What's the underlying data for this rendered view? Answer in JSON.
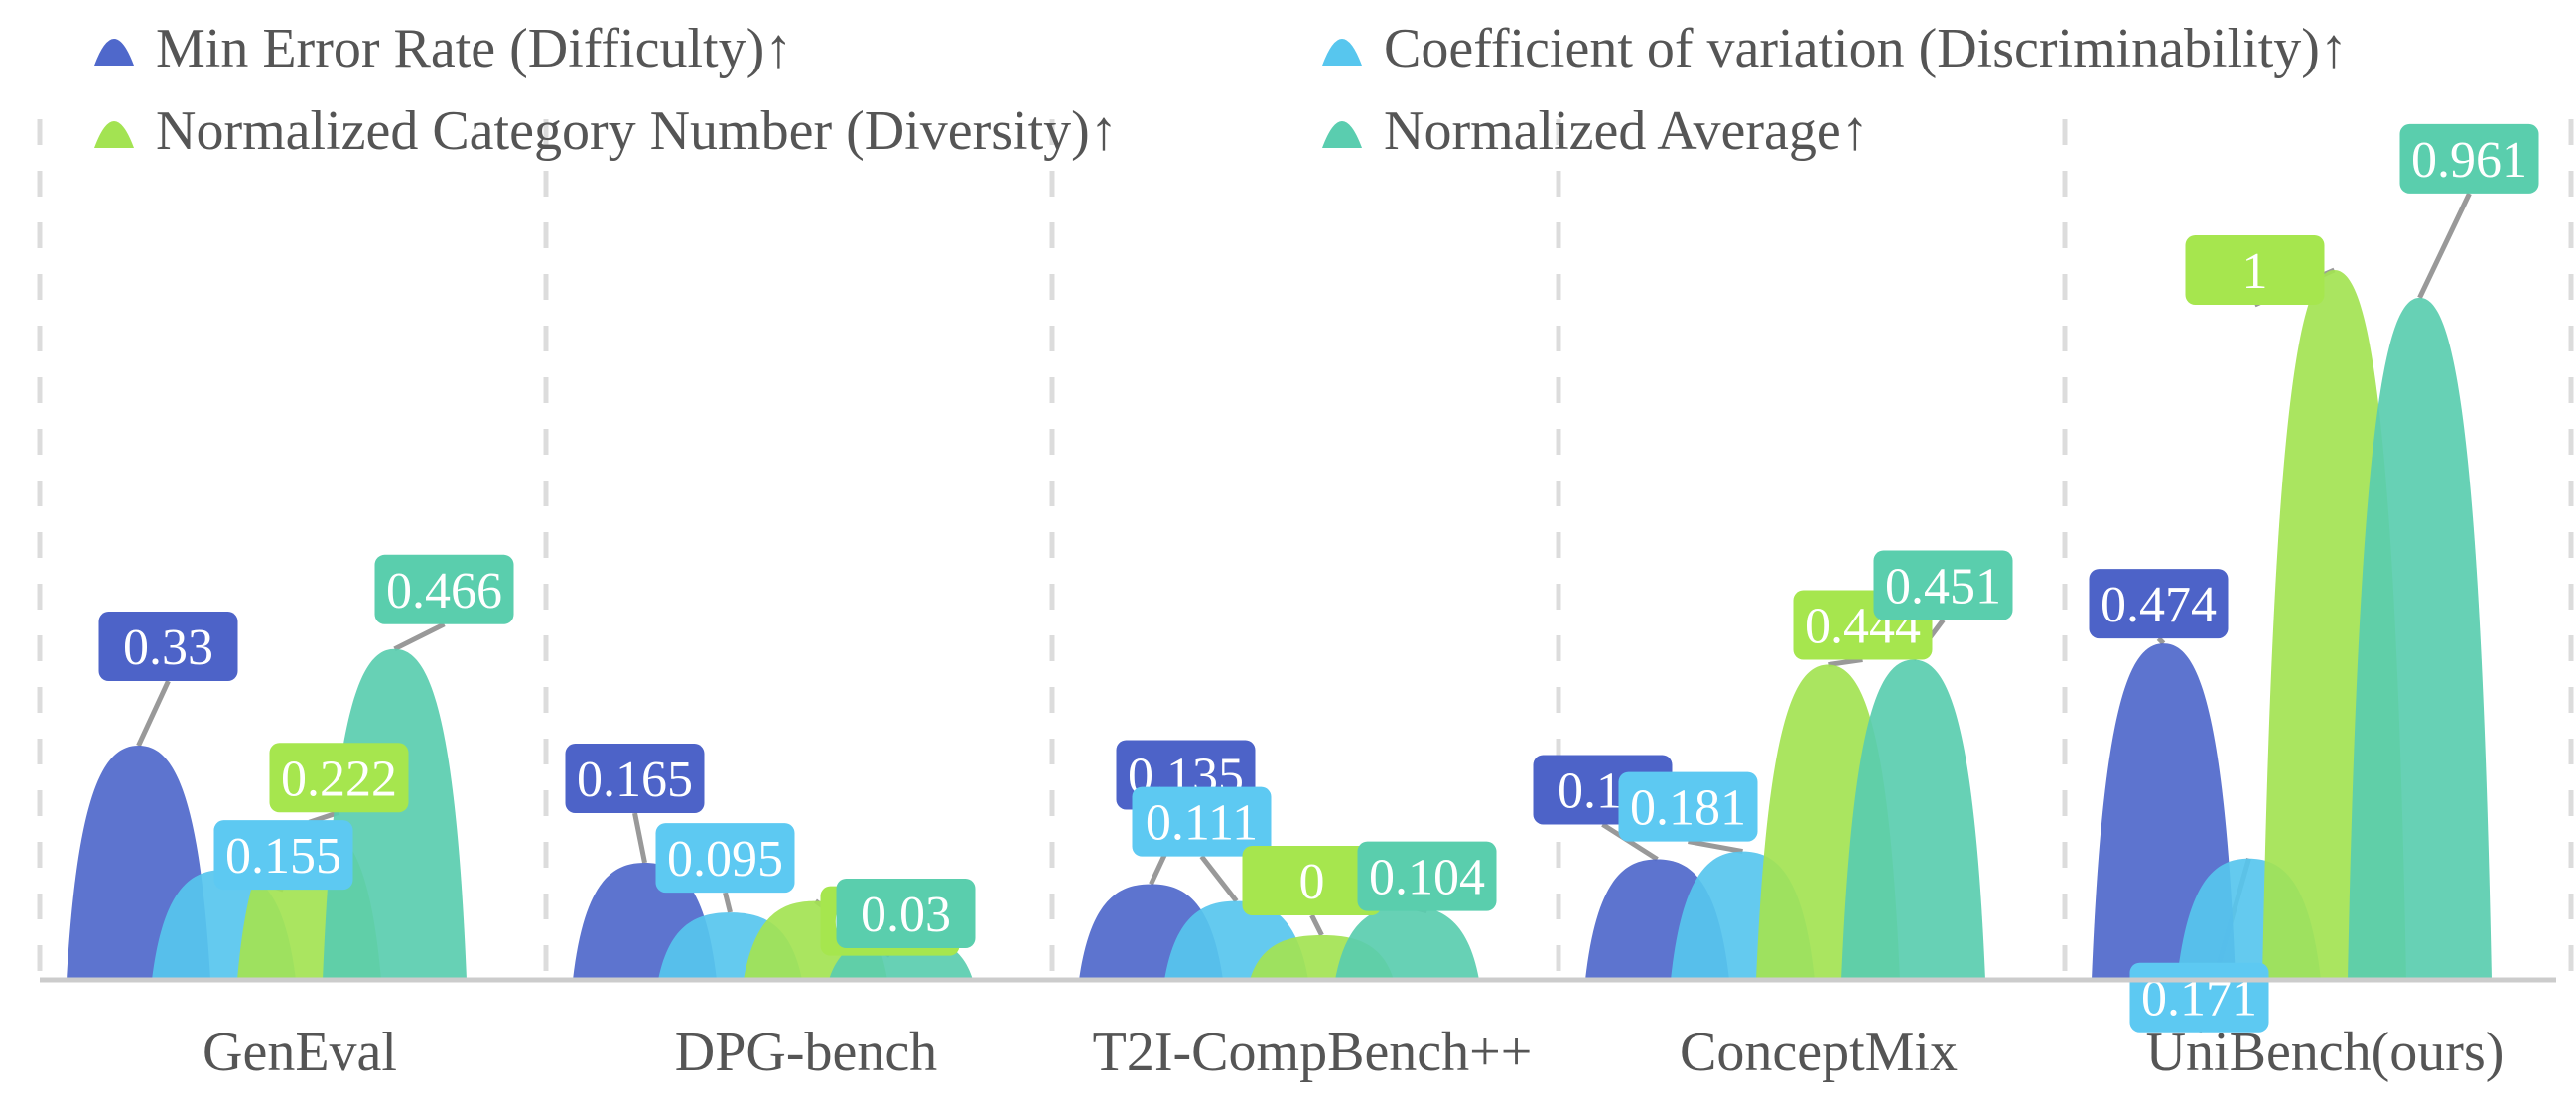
{
  "chart_data": {
    "type": "bar",
    "title": "",
    "xlabel": "",
    "ylabel": "",
    "ylim": [
      0,
      1
    ],
    "grid": "vertical dashed separators between groups",
    "legend_position": "top",
    "categories": [
      "GenEval",
      "DPG-bench",
      "T2I-CompBench++",
      "ConceptMix",
      "UniBench(ours)"
    ],
    "series": [
      {
        "name": "Min Error Rate (Difficulty)↑",
        "color": "#4F68CB",
        "label_color": "#4D63C8",
        "values": [
          0.33,
          0.165,
          0.135,
          0.17,
          0.474
        ],
        "labels": [
          "0.33",
          "0.165",
          "0.135",
          "0.17",
          "0.474"
        ]
      },
      {
        "name": "Coefficient of variation (Discriminability)↑",
        "color": "#57C6EE",
        "label_color": "#5DC9F2",
        "values": [
          0.155,
          0.095,
          0.111,
          0.181,
          0.171
        ],
        "labels": [
          "0.155",
          "0.095",
          "0.111",
          "0.181",
          "0.171"
        ]
      },
      {
        "name": "Normalized Category Number (Diversity)↑",
        "color": "#A3E352",
        "label_color": "#A6E64E",
        "values": [
          0.222,
          0.111,
          0,
          0.444,
          1
        ],
        "labels": [
          "0.222",
          "0.111",
          "0",
          "0.444",
          "1"
        ]
      },
      {
        "name": "Normalized Average↑",
        "color": "#5ACDAF",
        "label_color": "#5ACEAD",
        "values": [
          0.466,
          0.03,
          0.104,
          0.451,
          0.961
        ],
        "labels": [
          "0.466",
          "0.03",
          "0.104",
          "0.451",
          "0.961"
        ]
      }
    ]
  }
}
